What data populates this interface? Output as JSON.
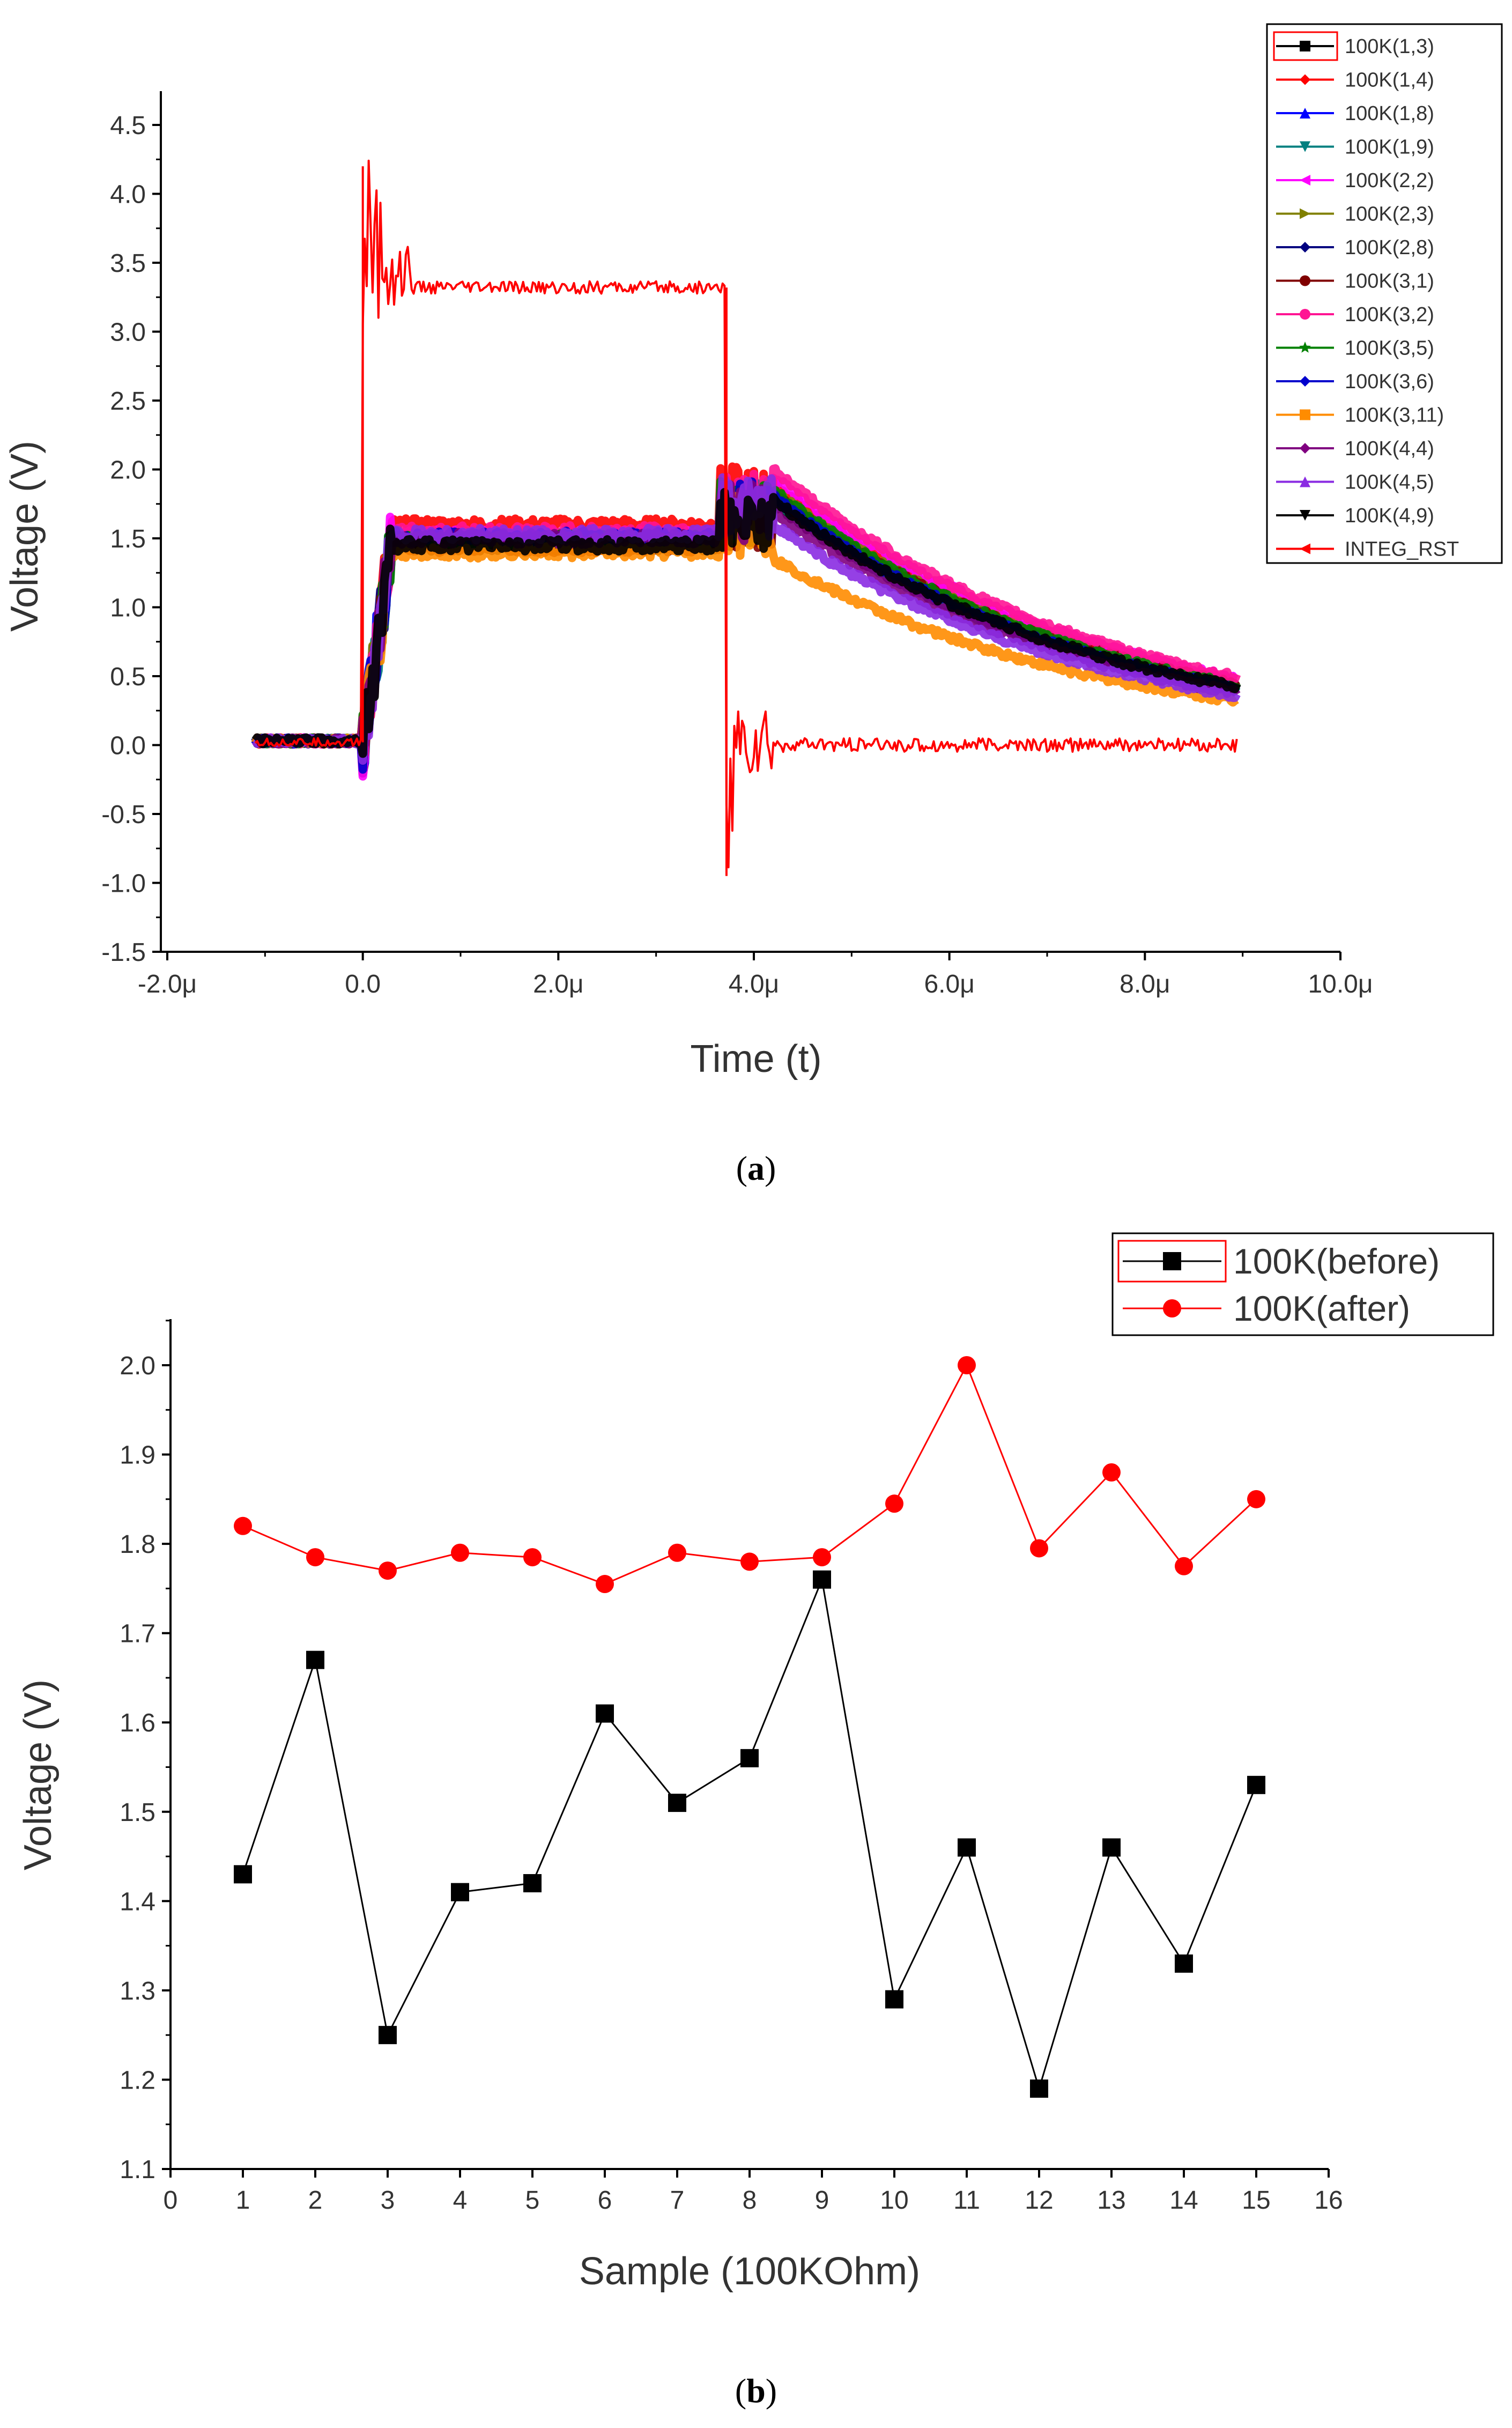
{
  "chart_data": [
    {
      "type": "line",
      "panel": "a",
      "xlabel": "Time (t)",
      "ylabel": "Voltage (V)",
      "xlim": [
        -2.0,
        10.0
      ],
      "ylim": [
        -1.5,
        4.5
      ],
      "xticks": [
        -2.0,
        0.0,
        2.0,
        4.0,
        6.0,
        8.0,
        10.0
      ],
      "xtick_labels": [
        "-2.0μ",
        "0.0",
        "2.0μ",
        "4.0μ",
        "6.0μ",
        "8.0μ",
        "10.0μ"
      ],
      "yticks": [
        -1.5,
        -1.0,
        -0.5,
        0.0,
        0.5,
        1.0,
        1.5,
        2.0,
        2.5,
        3.0,
        3.5,
        4.0,
        4.5
      ],
      "ytick_labels": [
        "-1.5",
        "-1.0",
        "-0.5",
        "0.0",
        "0.5",
        "1.0",
        "1.5",
        "2.0",
        "2.5",
        "3.0",
        "3.5",
        "4.0",
        "4.5"
      ],
      "legend_position": "outside-right",
      "series": [
        {
          "name": "100K(1,3)",
          "color": "#000000",
          "marker": "square",
          "plateau": 1.45,
          "peak": 1.75,
          "end": 0.42
        },
        {
          "name": "100K(1,4)",
          "color": "#ff0000",
          "marker": "diamond",
          "plateau": 1.6,
          "peak": 1.9,
          "end": 0.45
        },
        {
          "name": "100K(1,8)",
          "color": "#0000ff",
          "marker": "triangle-up",
          "plateau": 1.5,
          "peak": 1.8,
          "end": 0.4
        },
        {
          "name": "100K(1,9)",
          "color": "#008080",
          "marker": "triangle-down",
          "plateau": 1.48,
          "peak": 1.78,
          "end": 0.4
        },
        {
          "name": "100K(2,2)",
          "color": "#ff00ff",
          "marker": "triangle-left",
          "plateau": 1.52,
          "peak": 1.95,
          "end": 0.48
        },
        {
          "name": "100K(2,3)",
          "color": "#808000",
          "marker": "triangle-right",
          "plateau": 1.47,
          "peak": 1.85,
          "end": 0.43
        },
        {
          "name": "100K(2,8)",
          "color": "#000080",
          "marker": "diamond",
          "plateau": 1.46,
          "peak": 1.8,
          "end": 0.42
        },
        {
          "name": "100K(3,1)",
          "color": "#800000",
          "marker": "pentagon",
          "plateau": 1.44,
          "peak": 1.82,
          "end": 0.44
        },
        {
          "name": "100K(3,2)",
          "color": "#ff1493",
          "marker": "hexagon",
          "plateau": 1.55,
          "peak": 2.0,
          "end": 0.49
        },
        {
          "name": "100K(3,5)",
          "color": "#008000",
          "marker": "star",
          "plateau": 1.49,
          "peak": 1.85,
          "end": 0.43
        },
        {
          "name": "100K(3,6)",
          "color": "#0000cd",
          "marker": "diamond",
          "plateau": 1.51,
          "peak": 1.8,
          "end": 0.41
        },
        {
          "name": "100K(3,11)",
          "color": "#ff8c00",
          "marker": "square",
          "plateau": 1.4,
          "peak": 1.35,
          "end": 0.32
        },
        {
          "name": "100K(4,4)",
          "color": "#800080",
          "marker": "diamond",
          "plateau": 1.5,
          "peak": 1.7,
          "end": 0.38
        },
        {
          "name": "100K(4,5)",
          "color": "#8a2be2",
          "marker": "triangle-up",
          "plateau": 1.53,
          "peak": 1.6,
          "end": 0.36
        },
        {
          "name": "100K(4,9)",
          "color": "#000000",
          "marker": "triangle-down",
          "plateau": 1.45,
          "peak": 1.78,
          "end": 0.42
        },
        {
          "name": "INTEG_RST",
          "color": "#ff0000",
          "marker": "triangle-left",
          "plateau": 3.32,
          "peak": 4.2,
          "end": 0.0
        }
      ]
    },
    {
      "type": "line",
      "panel": "b",
      "xlabel": "Sample (100KOhm)",
      "ylabel": "Voltage (V)",
      "xlim": [
        0,
        16
      ],
      "ylim": [
        1.1,
        2.05
      ],
      "xticks": [
        0,
        1,
        2,
        3,
        4,
        5,
        6,
        7,
        8,
        9,
        10,
        11,
        12,
        13,
        14,
        15,
        16
      ],
      "xtick_labels": [
        "0",
        "1",
        "2",
        "3",
        "4",
        "5",
        "6",
        "7",
        "8",
        "9",
        "10",
        "11",
        "12",
        "13",
        "14",
        "15",
        "16"
      ],
      "yticks": [
        1.1,
        1.2,
        1.3,
        1.4,
        1.5,
        1.6,
        1.7,
        1.8,
        1.9,
        2.0
      ],
      "ytick_labels": [
        "1.1",
        "1.2",
        "1.3",
        "1.4",
        "1.5",
        "1.6",
        "1.7",
        "1.8",
        "1.9",
        "2.0"
      ],
      "legend_position": "top-right",
      "x": [
        1,
        2,
        3,
        4,
        5,
        6,
        7,
        8,
        9,
        10,
        11,
        12,
        13,
        14,
        15
      ],
      "series": [
        {
          "name": "100K(before)",
          "color": "#000000",
          "marker": "square",
          "values": [
            1.43,
            1.67,
            1.25,
            1.41,
            1.42,
            1.61,
            1.51,
            1.56,
            1.76,
            1.29,
            1.46,
            1.19,
            1.46,
            1.33,
            1.53
          ]
        },
        {
          "name": "100K(after)",
          "color": "#ff0000",
          "marker": "circle",
          "values": [
            1.82,
            1.785,
            1.77,
            1.79,
            1.785,
            1.755,
            1.79,
            1.78,
            1.785,
            1.845,
            2.0,
            1.795,
            1.88,
            1.775,
            1.85
          ]
        }
      ]
    }
  ],
  "captions": {
    "a": "a",
    "b": "b"
  }
}
